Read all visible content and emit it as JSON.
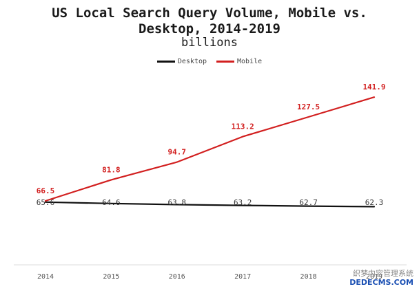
{
  "chart_data": {
    "type": "line",
    "title_line1": "US Local Search Query Volume, Mobile vs.",
    "title_line2": "Desktop, 2014-2019",
    "subtitle": "billions",
    "categories": [
      "2014",
      "2015",
      "2016",
      "2017",
      "2018",
      "2019"
    ],
    "series": [
      {
        "name": "Desktop",
        "color": "#111111",
        "values": [
          65.6,
          64.6,
          63.8,
          63.2,
          62.7,
          62.3
        ]
      },
      {
        "name": "Mobile",
        "color": "#d21f1f",
        "values": [
          66.5,
          81.8,
          94.7,
          113.2,
          127.5,
          141.9
        ]
      }
    ],
    "ylim": [
      40,
      160
    ],
    "legend_position": "top-center",
    "grid": false
  },
  "watermark": {
    "cn_text": "织梦内容管理系统",
    "site": "DEDECMS.COM"
  }
}
